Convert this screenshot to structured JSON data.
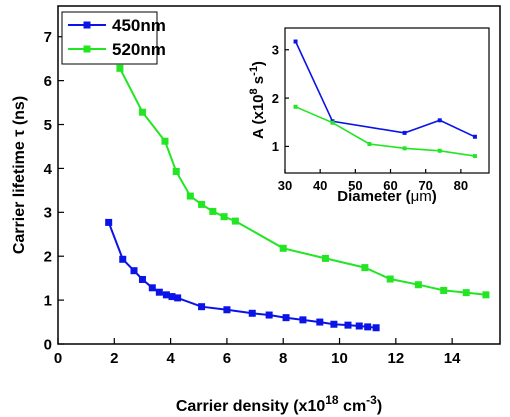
{
  "chart_data": [
    {
      "type": "line",
      "xlabel": "Carrier density (x10",
      "xlabel_sup": "18",
      "xlabel_mid": " cm",
      "xlabel_sup2": "-3",
      "xlabel_end": ")",
      "ylabel": "Carrier lifetime τ (ns)",
      "xlim": [
        0,
        15.7
      ],
      "ylim": [
        0,
        7.7
      ],
      "xticks": [
        0,
        2,
        4,
        6,
        8,
        10,
        12,
        14
      ],
      "yticks": [
        0,
        1,
        2,
        3,
        4,
        5,
        6,
        7
      ],
      "grid": false,
      "legend_position": "top-left",
      "series": [
        {
          "name": "450nm",
          "color": "#0a14e6",
          "marker": "square",
          "x": [
            1.8,
            2.3,
            2.7,
            3.0,
            3.35,
            3.6,
            3.85,
            4.05,
            4.25,
            5.1,
            6.0,
            6.9,
            7.5,
            8.1,
            8.7,
            9.3,
            9.8,
            10.3,
            10.7,
            11.0,
            11.3
          ],
          "y": [
            2.77,
            1.93,
            1.67,
            1.47,
            1.28,
            1.18,
            1.12,
            1.08,
            1.05,
            0.85,
            0.78,
            0.7,
            0.66,
            0.6,
            0.55,
            0.5,
            0.45,
            0.43,
            0.41,
            0.39,
            0.37
          ]
        },
        {
          "name": "520nm",
          "color": "#22e622",
          "marker": "square",
          "x": [
            2.2,
            3.0,
            3.8,
            4.2,
            4.7,
            5.1,
            5.5,
            5.9,
            6.3,
            8.0,
            9.5,
            10.9,
            11.8,
            12.8,
            13.7,
            14.5,
            15.2
          ],
          "y": [
            6.28,
            5.28,
            4.62,
            3.93,
            3.37,
            3.18,
            3.02,
            2.9,
            2.8,
            2.18,
            1.95,
            1.74,
            1.48,
            1.35,
            1.22,
            1.17,
            1.12
          ]
        }
      ]
    },
    {
      "type": "line",
      "xlabel": "Diameter (",
      "xlabel_unit": "μm",
      "xlabel_end": ")",
      "ylabel": "A (x10",
      "ylabel_sup": "8",
      "ylabel_mid": " s",
      "ylabel_sup2": "-1",
      "ylabel_end": ")",
      "xlim": [
        30,
        88
      ],
      "ylim": [
        0.45,
        3.45
      ],
      "xticks": [
        30,
        40,
        50,
        60,
        70,
        80
      ],
      "yticks": [
        1,
        2,
        3
      ],
      "grid": false,
      "series": [
        {
          "color": "#0a14e6",
          "x": [
            33,
            43.5,
            64,
            74,
            84
          ],
          "y": [
            3.17,
            1.52,
            1.28,
            1.54,
            1.2
          ]
        },
        {
          "color": "#22e622",
          "x": [
            33,
            43.5,
            54,
            64,
            74,
            84
          ],
          "y": [
            1.82,
            1.49,
            1.05,
            0.96,
            0.91,
            0.8
          ]
        }
      ]
    }
  ]
}
